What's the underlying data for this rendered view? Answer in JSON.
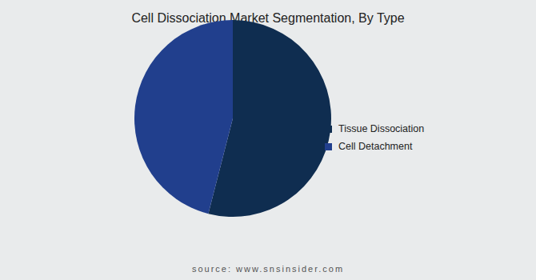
{
  "chart_data": {
    "type": "pie",
    "title": "Cell Dissociation Market Segmentation, By Type",
    "categories": [
      "Tissue Dissociation",
      "Cell Detachment"
    ],
    "values": [
      54,
      46
    ],
    "colors": [
      "#0f2d50",
      "#213f8d"
    ],
    "legend": "right",
    "data_labels": false,
    "source": "source: www.snsinsider.com"
  }
}
